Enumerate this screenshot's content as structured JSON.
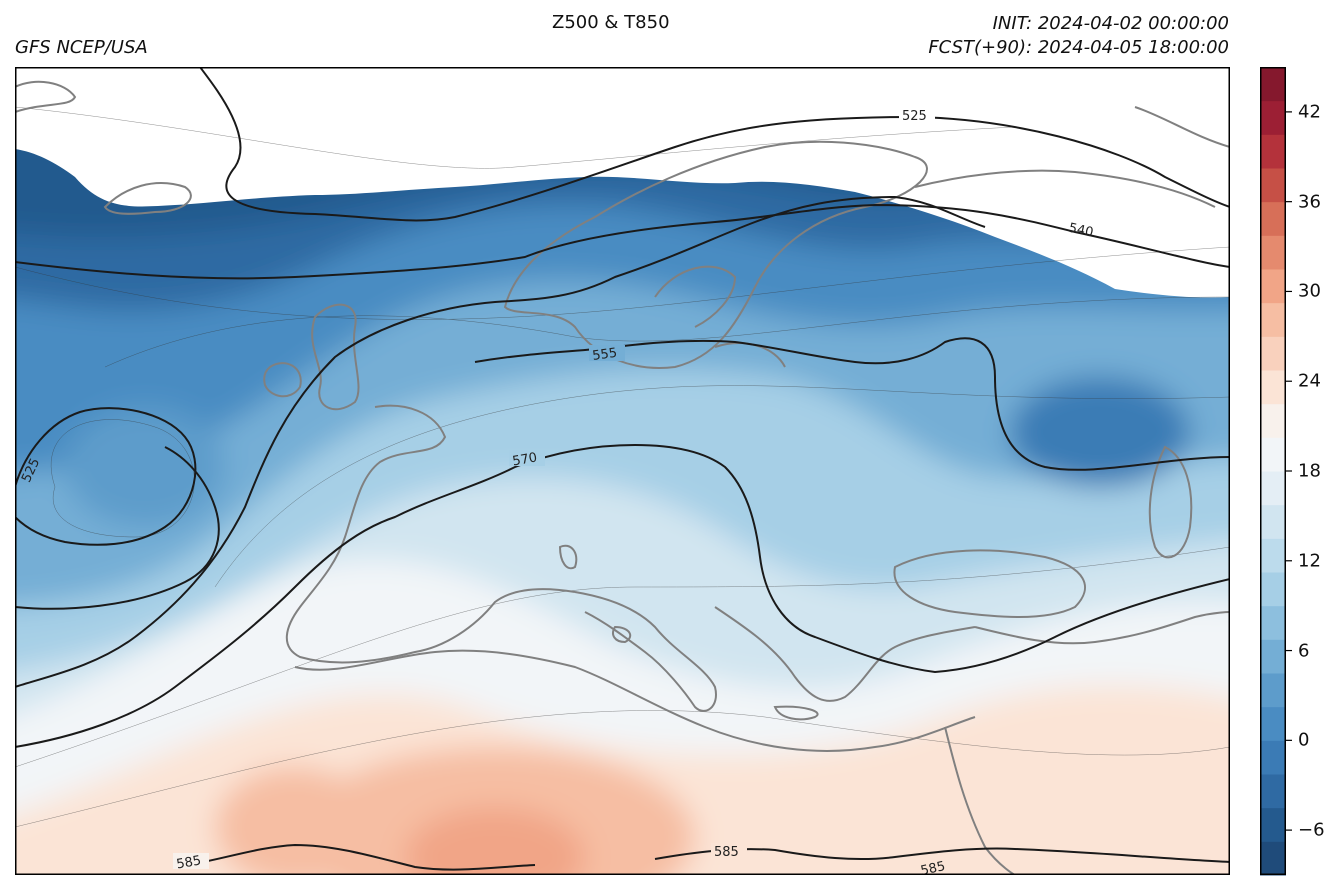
{
  "header": {
    "model": "GFS NCEP/USA",
    "title": "Z500 & T850",
    "init": "INIT: 2024-04-02 00:00:00",
    "fcst": "FCST(+90): 2024-04-05 18:00:00"
  },
  "map": {
    "coastline_color": "#808080",
    "contour_color": "#1a1a1a",
    "z500_labels": [
      "525",
      "540",
      "555",
      "570",
      "525",
      "585",
      "585",
      "585"
    ]
  },
  "colorbar": {
    "cmap": "RdBu_r",
    "vmin": -9,
    "vmax": 45,
    "tick_labels": [
      "−6",
      "0",
      "6",
      "12",
      "18",
      "24",
      "30",
      "36",
      "42"
    ],
    "tick_values": [
      -6,
      0,
      6,
      12,
      18,
      24,
      30,
      36,
      42
    ],
    "colors": [
      "#1f4b7a",
      "#245a8e",
      "#2f6aa3",
      "#3b7bb5",
      "#4a8cc2",
      "#5d9ccb",
      "#74aed5",
      "#8dbfde",
      "#a6cfe6",
      "#bcdbec",
      "#d1e5f0",
      "#e4eef5",
      "#f2f5f8",
      "#f8f1ec",
      "#fbe4d6",
      "#f9d1bd",
      "#f6bea3",
      "#f1a587",
      "#e58a6e",
      "#d76f58",
      "#c65046",
      "#b4323b",
      "#9c1f34",
      "#85182d"
    ]
  }
}
